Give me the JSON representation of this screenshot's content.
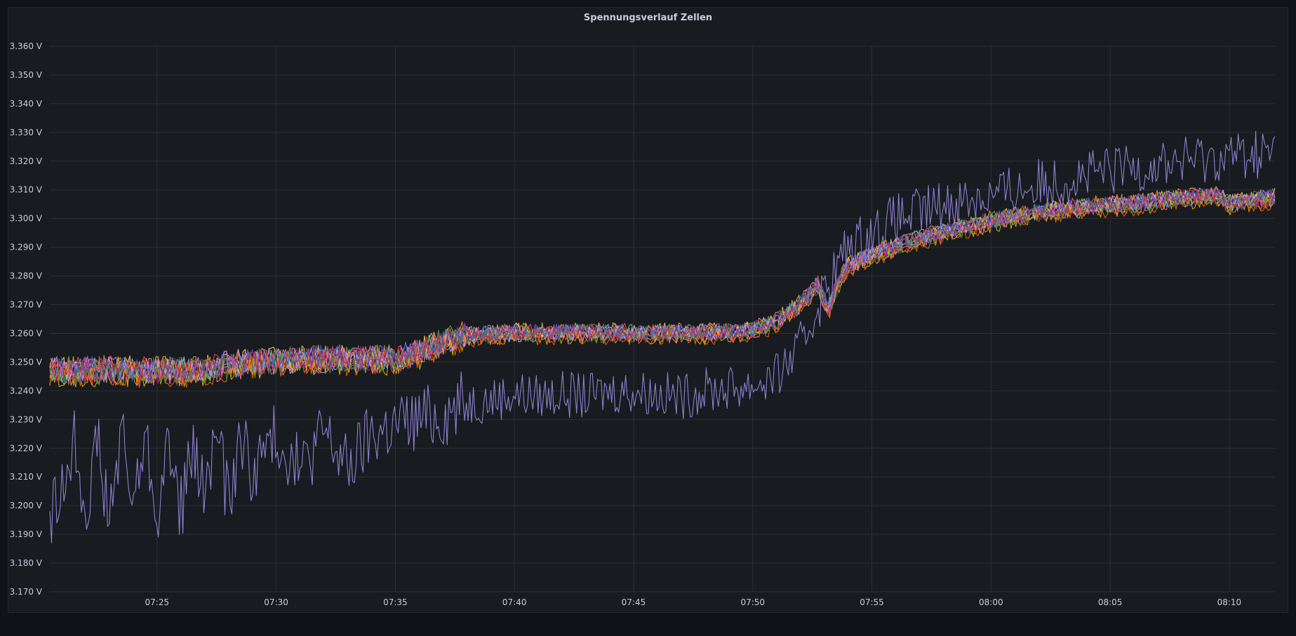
{
  "panel": {
    "title": "Spennungsverlauf Zellen"
  },
  "chart_data": {
    "type": "line",
    "title": "Spennungsverlauf Zellen",
    "xlabel": "",
    "ylabel": "",
    "grid": true,
    "legend": "none",
    "y_unit": "V",
    "ylim": [
      3.17,
      3.36
    ],
    "y_ticks": [
      3.17,
      3.18,
      3.19,
      3.2,
      3.21,
      3.22,
      3.23,
      3.24,
      3.25,
      3.26,
      3.27,
      3.28,
      3.29,
      3.3,
      3.31,
      3.32,
      3.33,
      3.34,
      3.35,
      3.36
    ],
    "y_tick_labels": [
      "3.170 V",
      "3.180 V",
      "3.190 V",
      "3.200 V",
      "3.210 V",
      "3.220 V",
      "3.230 V",
      "3.240 V",
      "3.250 V",
      "3.260 V",
      "3.270 V",
      "3.280 V",
      "3.290 V",
      "3.300 V",
      "3.310 V",
      "3.320 V",
      "3.330 V",
      "3.340 V",
      "3.350 V",
      "3.360 V"
    ],
    "xlim": [
      "07:20:30",
      "08:11:55"
    ],
    "x_ticks": [
      "07:25",
      "07:30",
      "07:35",
      "07:40",
      "07:45",
      "07:50",
      "07:55",
      "08:00",
      "08:05",
      "08:10"
    ],
    "x_tick_labels": [
      "07:25",
      "07:30",
      "07:35",
      "07:40",
      "07:45",
      "07:50",
      "07:55",
      "08:00",
      "08:05",
      "08:10"
    ],
    "outlier_series": {
      "color": "#8f7fd0",
      "points": [
        [
          "07:20:30",
          3.195
        ],
        [
          "07:21:00",
          3.205
        ],
        [
          "07:21:30",
          3.225
        ],
        [
          "07:22:00",
          3.2
        ],
        [
          "07:22:30",
          3.222
        ],
        [
          "07:23:00",
          3.195
        ],
        [
          "07:23:30",
          3.224
        ],
        [
          "07:24:00",
          3.2
        ],
        [
          "07:24:30",
          3.225
        ],
        [
          "07:25:00",
          3.197
        ],
        [
          "07:25:30",
          3.222
        ],
        [
          "07:26:00",
          3.198
        ],
        [
          "07:26:30",
          3.22
        ],
        [
          "07:27:00",
          3.202
        ],
        [
          "07:27:30",
          3.228
        ],
        [
          "07:28:00",
          3.2
        ],
        [
          "07:28:30",
          3.225
        ],
        [
          "07:29:00",
          3.212
        ],
        [
          "07:30:00",
          3.225
        ],
        [
          "07:31:00",
          3.212
        ],
        [
          "07:32:00",
          3.226
        ],
        [
          "07:33:00",
          3.213
        ],
        [
          "07:34:00",
          3.225
        ],
        [
          "07:35:00",
          3.228
        ],
        [
          "07:36:00",
          3.23
        ],
        [
          "07:37:00",
          3.232
        ],
        [
          "07:38:00",
          3.236
        ],
        [
          "07:39:00",
          3.237
        ],
        [
          "07:40:00",
          3.239
        ],
        [
          "07:41:00",
          3.238
        ],
        [
          "07:42:00",
          3.239
        ],
        [
          "07:43:00",
          3.238
        ],
        [
          "07:44:00",
          3.24
        ],
        [
          "07:45:00",
          3.24
        ],
        [
          "07:46:00",
          3.239
        ],
        [
          "07:47:00",
          3.238
        ],
        [
          "07:48:00",
          3.24
        ],
        [
          "07:49:00",
          3.241
        ],
        [
          "07:50:00",
          3.242
        ],
        [
          "07:51:00",
          3.245
        ],
        [
          "07:52:00",
          3.255
        ],
        [
          "07:53:00",
          3.275
        ],
        [
          "07:54:00",
          3.29
        ],
        [
          "07:55:00",
          3.295
        ],
        [
          "07:56:00",
          3.3
        ],
        [
          "07:57:00",
          3.302
        ],
        [
          "07:58:00",
          3.305
        ],
        [
          "07:59:00",
          3.307
        ],
        [
          "08:00:00",
          3.308
        ],
        [
          "08:02:00",
          3.312
        ],
        [
          "08:04:00",
          3.315
        ],
        [
          "08:06:00",
          3.318
        ],
        [
          "08:08:00",
          3.32
        ],
        [
          "08:10:00",
          3.322
        ],
        [
          "08:11:55",
          3.323
        ]
      ]
    },
    "cell_band": {
      "colors": [
        "#5794f2",
        "#73bf69",
        "#fade2a",
        "#ff9830",
        "#f2495c",
        "#b877d9",
        "#8ab8ff",
        "#e0b400",
        "#56a64b",
        "#ff7383",
        "#ca95e5",
        "#fa6400",
        "#37872d",
        "#c4162a",
        "#1f60c4",
        "#8f3bb8"
      ],
      "points": [
        [
          "07:20:30",
          3.247
        ],
        [
          "07:25:00",
          3.247
        ],
        [
          "07:27:00",
          3.247
        ],
        [
          "07:28:00",
          3.249
        ],
        [
          "07:30:00",
          3.25
        ],
        [
          "07:32:00",
          3.251
        ],
        [
          "07:35:00",
          3.251
        ],
        [
          "07:36:00",
          3.253
        ],
        [
          "07:37:00",
          3.257
        ],
        [
          "07:38:00",
          3.259
        ],
        [
          "07:40:00",
          3.26
        ],
        [
          "07:45:00",
          3.26
        ],
        [
          "07:49:00",
          3.26
        ],
        [
          "07:50:00",
          3.261
        ],
        [
          "07:51:00",
          3.264
        ],
        [
          "07:52:00",
          3.27
        ],
        [
          "07:52:45",
          3.277
        ],
        [
          "07:53:10",
          3.268
        ],
        [
          "07:53:40",
          3.279
        ],
        [
          "07:54:00",
          3.283
        ],
        [
          "07:55:00",
          3.287
        ],
        [
          "07:56:00",
          3.29
        ],
        [
          "07:57:00",
          3.293
        ],
        [
          "07:58:00",
          3.295
        ],
        [
          "08:00:00",
          3.299
        ],
        [
          "08:02:00",
          3.302
        ],
        [
          "08:04:00",
          3.304
        ],
        [
          "08:06:00",
          3.305
        ],
        [
          "08:08:00",
          3.307
        ],
        [
          "08:09:30",
          3.308
        ],
        [
          "08:10:00",
          3.305
        ],
        [
          "08:11:55",
          3.307
        ]
      ]
    }
  }
}
